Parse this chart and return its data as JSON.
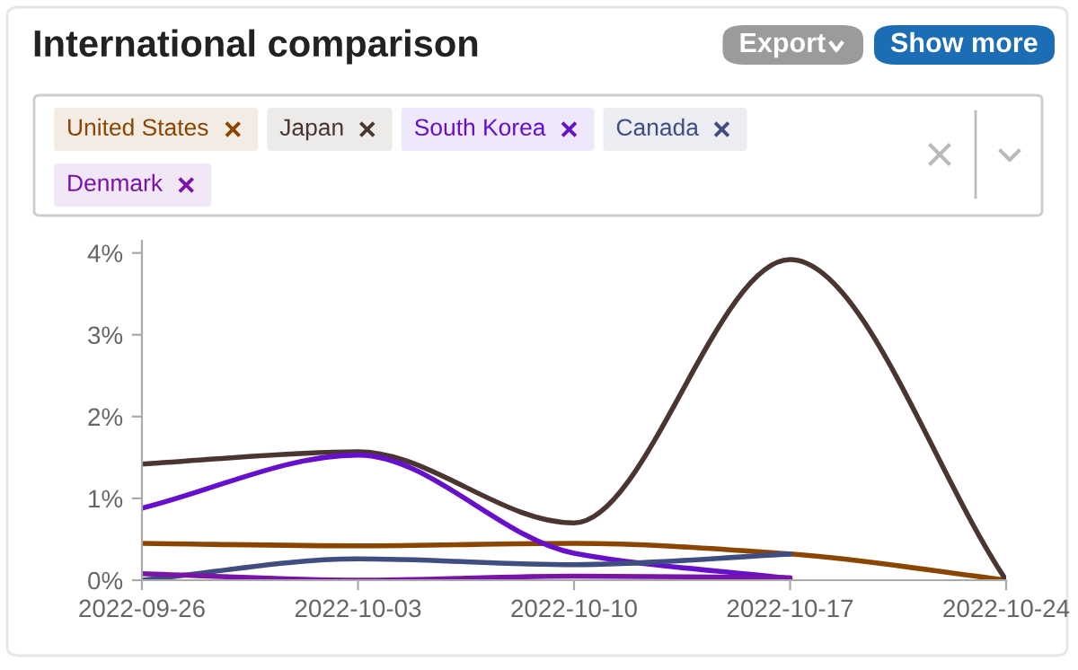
{
  "chart_data": {
    "type": "line",
    "title": "International comparison",
    "annotations": [
      "Export",
      "Show more"
    ],
    "x": [
      "2022-09-26",
      "2022-10-03",
      "2022-10-10",
      "2022-10-17",
      "2022-10-24"
    ],
    "series": [
      {
        "name": "United States",
        "color": "#8a4500",
        "values": [
          0.45,
          0.42,
          0.45,
          0.32,
          0.0
        ]
      },
      {
        "name": "Japan",
        "color": "#4a3530",
        "values": [
          1.42,
          1.57,
          0.7,
          3.92,
          0.0
        ]
      },
      {
        "name": "South Korea",
        "color": "#6610cc",
        "values": [
          0.88,
          1.53,
          0.33,
          0.02,
          null
        ]
      },
      {
        "name": "Canada",
        "color": "#3f4d80",
        "values": [
          0.0,
          0.26,
          0.19,
          0.32,
          null
        ]
      },
      {
        "name": "Denmark",
        "color": "#7a14a8",
        "values": [
          0.08,
          0.0,
          0.05,
          0.03,
          null
        ]
      }
    ],
    "xlim": [
      "2022-09-26",
      "2022-10-24"
    ],
    "xticks": [
      "2022-09-26",
      "2022-10-03",
      "2022-10-10",
      "2022-10-17",
      "2022-10-24"
    ],
    "ylim": [
      0,
      4.15
    ],
    "yticks": [
      {
        "value": 0,
        "label": "0%"
      },
      {
        "value": 1,
        "label": "1%"
      },
      {
        "value": 2,
        "label": "2%"
      },
      {
        "value": 3,
        "label": "3%"
      },
      {
        "value": 4,
        "label": "4%"
      }
    ],
    "grid": false,
    "legend": "top",
    "marker": "none",
    "line_style": "solid"
  }
}
